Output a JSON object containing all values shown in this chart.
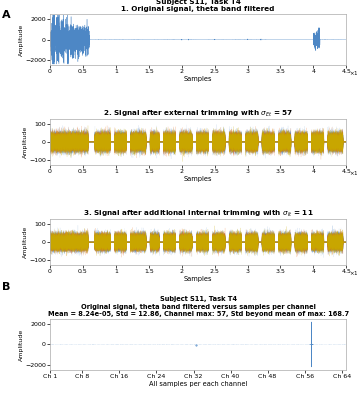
{
  "panel_A_title": "Subject S11, Task T4",
  "plot1_title": "1. Original signal, theta band filtered",
  "plot2_title": "2. Signal after external trimming with $\\sigma_{Et}$ = 57",
  "plot3_title": "3. Signal after additional internal trimming with $\\sigma_{It}$ = 11",
  "panel_B_title": "Subject S11, Task T4",
  "plotB_title": "Original signal, theta band filtered versus samples per channel",
  "plotB_subtitle": "Mean = 8.24e-05, Std = 12.86, Channel max: 57, Std beyond mean of max: 168.7",
  "xlabel_samples": "Samples",
  "xlabel_channels": "All samples per each channel",
  "ylabel_amplitude": "Amplitude",
  "xlim_samples": [
    0,
    450000
  ],
  "ylim_plot1": [
    -2500,
    2500
  ],
  "ylim_plot23": [
    -130,
    130
  ],
  "ylim_plotB": [
    -2500,
    2500
  ],
  "yticks_plot1": [
    -2000,
    0,
    2000
  ],
  "yticks_plot23": [
    -100,
    0,
    100
  ],
  "yticks_plotB": [
    -2000,
    0,
    2000
  ],
  "xticks_samples": [
    0,
    50000,
    100000,
    150000,
    200000,
    250000,
    300000,
    350000,
    400000,
    450000
  ],
  "xtick_labels_samples": [
    "0",
    "0.5",
    "1",
    "1.5",
    "2",
    "2.5",
    "3",
    "3.5",
    "4",
    "4.5"
  ],
  "n_channels": 64,
  "spike_channel_idx": 56,
  "spike_amplitude": 2200,
  "bg_color": "#ffffff",
  "color_blue": "#3a7abf",
  "color_orange": "#e87020",
  "color_yellow": "#c8a800",
  "color_cyan": "#40b0c0"
}
